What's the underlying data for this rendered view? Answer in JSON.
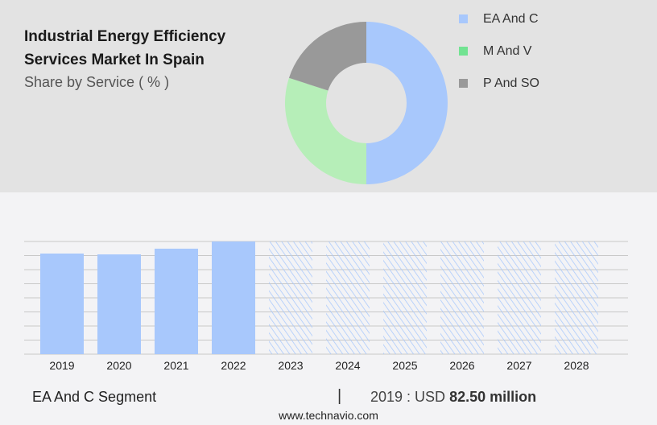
{
  "header": {
    "title": "Industrial Energy Efficiency Services Market In Spain",
    "subtitle": "Share by Service ( % )"
  },
  "chart_data": [
    {
      "type": "pie",
      "variant": "donut",
      "labels": [
        "EA And C",
        "M And V",
        "P And SO"
      ],
      "values": [
        50,
        30,
        20
      ],
      "colors": [
        "#a8c8fc",
        "#b6eeb8",
        "#999999"
      ],
      "legend_colors": [
        "#a8c8fc",
        "#72e392",
        "#999999"
      ],
      "legend": "right"
    },
    {
      "type": "bar",
      "categories": [
        "2019",
        "2020",
        "2021",
        "2022",
        "2023",
        "2024",
        "2025",
        "2026",
        "2027",
        "2028"
      ],
      "series": [
        {
          "name": "EA And C",
          "values": [
            82.5,
            81.8,
            86.5,
            92.4,
            null,
            null,
            null,
            null,
            null,
            null
          ]
        }
      ],
      "forecast_categories": [
        "2023",
        "2024",
        "2025",
        "2026",
        "2027",
        "2028"
      ],
      "ylim": [
        0,
        92.4
      ],
      "grid": true,
      "color": "#a8c8fc"
    }
  ],
  "footer": {
    "segment": "EA And C Segment",
    "separator": "|",
    "value_prefix": "2019 : USD ",
    "value": "82.50 million",
    "site": "www.technavio.com"
  }
}
